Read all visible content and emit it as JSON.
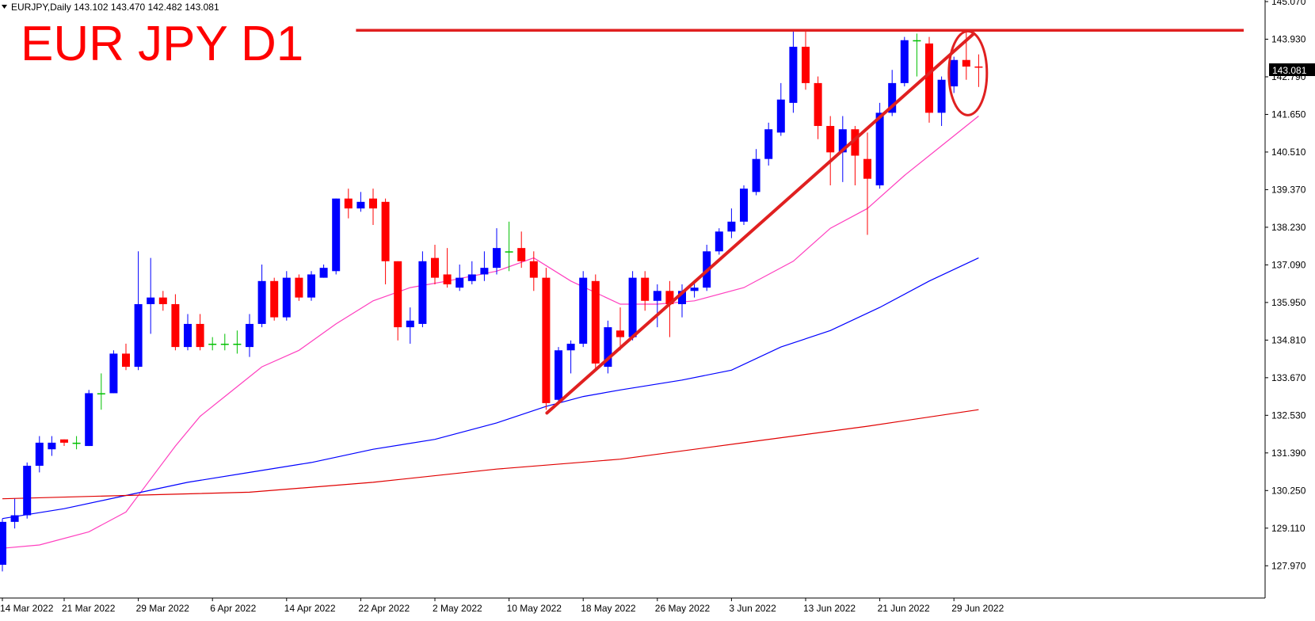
{
  "header": {
    "symbol_line": "EURJPY,Daily  143.102 143.470 142.482 143.081",
    "headline": "EUR JPY D1",
    "current_price_label": "143.081"
  },
  "colors": {
    "bull": "#0000ff",
    "bear": "#ff0000",
    "doji": "#00c000",
    "ma_fast": "#ff3fbf",
    "ma_mid": "#0000ff",
    "ma_slow": "#e00000",
    "annotation": "#e02020",
    "axis": "#000000"
  },
  "chart_data": {
    "type": "candlestick",
    "symbol": "EURJPY",
    "timeframe": "Daily",
    "ylim": [
      127.4,
      145.07
    ],
    "y_ticks": [
      "145.070",
      "143.930",
      "142.790",
      "141.650",
      "140.510",
      "139.370",
      "138.230",
      "137.090",
      "135.950",
      "134.810",
      "133.670",
      "132.530",
      "131.390",
      "130.250",
      "129.110",
      "127.970"
    ],
    "x_ticks": [
      {
        "label": "14 Mar 2022",
        "index": 0
      },
      {
        "label": "21 Mar 2022",
        "index": 5
      },
      {
        "label": "29 Mar 2022",
        "index": 11
      },
      {
        "label": "6 Apr 2022",
        "index": 17
      },
      {
        "label": "14 Apr 2022",
        "index": 23
      },
      {
        "label": "22 Apr 2022",
        "index": 29
      },
      {
        "label": "2 May 2022",
        "index": 35
      },
      {
        "label": "10 May 2022",
        "index": 41
      },
      {
        "label": "18 May 2022",
        "index": 47
      },
      {
        "label": "26 May 2022",
        "index": 53
      },
      {
        "label": "3 Jun 2022",
        "index": 59
      },
      {
        "label": "13 Jun 2022",
        "index": 65
      },
      {
        "label": "21 Jun 2022",
        "index": 71
      },
      {
        "label": "29 Jun 2022",
        "index": 77
      }
    ],
    "candles": [
      [
        128.0,
        129.3,
        127.8,
        129.4
      ],
      [
        129.3,
        129.5,
        129.1,
        130.0
      ],
      [
        129.5,
        131.0,
        129.4,
        131.1
      ],
      [
        131.0,
        131.7,
        130.8,
        131.9
      ],
      [
        131.5,
        131.7,
        131.3,
        131.9
      ],
      [
        131.8,
        131.7,
        131.6,
        131.8
      ],
      [
        131.7,
        131.7,
        131.5,
        131.9
      ],
      [
        131.6,
        133.2,
        131.6,
        133.3
      ],
      [
        133.2,
        133.2,
        132.7,
        133.8
      ],
      [
        133.2,
        134.4,
        133.2,
        134.5
      ],
      [
        134.4,
        134.0,
        133.9,
        134.7
      ],
      [
        134.0,
        135.9,
        133.9,
        137.5
      ],
      [
        135.9,
        136.1,
        135.0,
        137.3
      ],
      [
        136.1,
        135.9,
        135.7,
        136.3
      ],
      [
        135.9,
        134.6,
        134.5,
        136.2
      ],
      [
        134.6,
        135.3,
        134.5,
        135.6
      ],
      [
        135.3,
        134.6,
        134.5,
        135.6
      ],
      [
        134.7,
        134.7,
        134.5,
        134.9
      ],
      [
        134.7,
        134.7,
        134.5,
        135.0
      ],
      [
        134.7,
        134.7,
        134.4,
        135.1
      ],
      [
        134.6,
        135.3,
        134.3,
        135.6
      ],
      [
        135.3,
        136.6,
        135.2,
        137.1
      ],
      [
        136.6,
        135.5,
        135.4,
        136.7
      ],
      [
        135.5,
        136.7,
        135.4,
        136.9
      ],
      [
        136.7,
        136.1,
        136.0,
        136.8
      ],
      [
        136.1,
        136.8,
        136.0,
        136.9
      ],
      [
        136.7,
        137.0,
        136.7,
        137.1
      ],
      [
        136.9,
        139.1,
        136.8,
        139.1
      ],
      [
        139.1,
        138.8,
        138.5,
        139.4
      ],
      [
        138.8,
        139.0,
        138.7,
        139.3
      ],
      [
        139.1,
        138.8,
        138.3,
        139.4
      ],
      [
        139.0,
        137.2,
        136.5,
        139.1
      ],
      [
        137.2,
        135.2,
        134.8,
        137.2
      ],
      [
        135.2,
        135.4,
        134.7,
        135.8
      ],
      [
        135.3,
        137.2,
        135.2,
        137.5
      ],
      [
        137.3,
        136.7,
        136.5,
        137.7
      ],
      [
        136.8,
        136.5,
        136.4,
        137.6
      ],
      [
        136.4,
        136.7,
        136.3,
        137.1
      ],
      [
        136.6,
        136.8,
        136.5,
        137.2
      ],
      [
        136.8,
        137.0,
        136.6,
        137.5
      ],
      [
        137.0,
        137.6,
        136.8,
        138.2
      ],
      [
        137.5,
        137.5,
        136.9,
        138.4
      ],
      [
        137.6,
        137.2,
        137.0,
        138.1
      ],
      [
        137.2,
        136.7,
        136.3,
        137.5
      ],
      [
        136.7,
        132.9,
        132.7,
        137.0
      ],
      [
        133.0,
        134.5,
        132.9,
        134.6
      ],
      [
        134.5,
        134.7,
        133.8,
        134.8
      ],
      [
        134.7,
        136.7,
        134.6,
        136.9
      ],
      [
        136.6,
        134.1,
        133.9,
        136.8
      ],
      [
        134.0,
        135.2,
        133.8,
        135.4
      ],
      [
        135.1,
        134.9,
        134.5,
        135.8
      ],
      [
        134.9,
        136.7,
        134.8,
        136.9
      ],
      [
        136.7,
        136.0,
        135.7,
        136.9
      ],
      [
        136.0,
        136.3,
        135.2,
        136.5
      ],
      [
        136.3,
        135.9,
        134.9,
        136.6
      ],
      [
        135.9,
        136.3,
        135.5,
        136.5
      ],
      [
        136.3,
        136.4,
        136.1,
        136.6
      ],
      [
        136.4,
        137.5,
        136.3,
        137.7
      ],
      [
        137.5,
        138.1,
        137.4,
        138.2
      ],
      [
        138.1,
        138.4,
        137.9,
        138.8
      ],
      [
        138.4,
        139.4,
        138.3,
        139.5
      ],
      [
        139.3,
        140.3,
        139.2,
        140.6
      ],
      [
        140.3,
        141.2,
        140.1,
        141.4
      ],
      [
        141.1,
        142.1,
        141.0,
        142.6
      ],
      [
        142.0,
        143.7,
        141.7,
        144.2
      ],
      [
        143.7,
        142.6,
        142.4,
        144.2
      ],
      [
        142.6,
        141.3,
        140.9,
        142.8
      ],
      [
        141.3,
        140.5,
        139.5,
        141.6
      ],
      [
        140.5,
        141.2,
        139.6,
        141.6
      ],
      [
        141.2,
        140.4,
        139.5,
        141.3
      ],
      [
        140.3,
        139.7,
        138.0,
        141.1
      ],
      [
        139.5,
        141.7,
        139.4,
        142.0
      ],
      [
        141.7,
        142.6,
        141.6,
        143.0
      ],
      [
        142.6,
        143.9,
        142.5,
        144.0
      ],
      [
        143.9,
        143.9,
        142.8,
        144.1
      ],
      [
        143.8,
        141.7,
        141.4,
        144.0
      ],
      [
        141.7,
        142.7,
        141.3,
        142.8
      ],
      [
        142.5,
        143.3,
        142.3,
        143.4
      ],
      [
        143.3,
        143.1,
        142.7,
        144.2
      ],
      [
        143.102,
        143.081,
        142.482,
        143.47
      ]
    ],
    "ma_fast": [
      [
        0,
        128.5
      ],
      [
        3,
        128.6
      ],
      [
        7,
        129.0
      ],
      [
        10,
        129.6
      ],
      [
        12,
        130.6
      ],
      [
        14,
        131.6
      ],
      [
        16,
        132.5
      ],
      [
        18,
        133.1
      ],
      [
        21,
        134.0
      ],
      [
        24,
        134.5
      ],
      [
        27,
        135.3
      ],
      [
        30,
        136.0
      ],
      [
        33,
        136.4
      ],
      [
        36,
        136.6
      ],
      [
        40,
        136.9
      ],
      [
        43,
        137.3
      ],
      [
        46,
        136.6
      ],
      [
        50,
        135.9
      ],
      [
        53,
        135.9
      ],
      [
        56,
        136.0
      ],
      [
        60,
        136.4
      ],
      [
        64,
        137.2
      ],
      [
        67,
        138.2
      ],
      [
        70,
        138.8
      ],
      [
        73,
        139.8
      ],
      [
        76,
        140.7
      ],
      [
        79,
        141.6
      ]
    ],
    "ma_mid": [
      [
        0,
        129.4
      ],
      [
        5,
        129.7
      ],
      [
        10,
        130.1
      ],
      [
        15,
        130.5
      ],
      [
        20,
        130.8
      ],
      [
        25,
        131.1
      ],
      [
        30,
        131.5
      ],
      [
        35,
        131.8
      ],
      [
        40,
        132.3
      ],
      [
        44,
        132.8
      ],
      [
        47,
        133.1
      ],
      [
        50,
        133.3
      ],
      [
        55,
        133.6
      ],
      [
        59,
        133.9
      ],
      [
        63,
        134.6
      ],
      [
        67,
        135.1
      ],
      [
        71,
        135.8
      ],
      [
        75,
        136.6
      ],
      [
        79,
        137.3
      ]
    ],
    "ma_slow": [
      [
        0,
        130.0
      ],
      [
        10,
        130.1
      ],
      [
        20,
        130.2
      ],
      [
        30,
        130.5
      ],
      [
        40,
        130.9
      ],
      [
        50,
        131.2
      ],
      [
        60,
        131.7
      ],
      [
        70,
        132.2
      ],
      [
        79,
        132.7
      ]
    ],
    "resistance_level": 144.2,
    "resistance_from_index": 29,
    "trendline": [
      [
        44,
        132.6
      ],
      [
        79,
        144.1
      ]
    ],
    "highlight_circle": {
      "center_index": 78,
      "center_price": 142.9
    }
  }
}
